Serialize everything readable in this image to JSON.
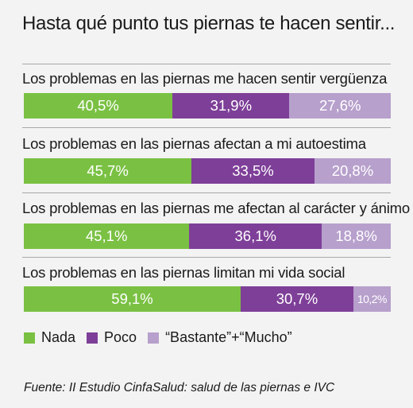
{
  "chart_data": {
    "type": "bar",
    "orientation": "horizontal",
    "stacked": true,
    "title": "Hasta qué punto tus piernas te hacen sentir...",
    "categories": [
      "Los problemas en las piernas me hacen sentir vergüenza",
      "Los problemas en las piernas afectan a mi autoestima",
      "Los problemas en las piernas me afectan al carácter y ánimo",
      "Los problemas en las piernas limitan mi vida social"
    ],
    "series": [
      {
        "name": "Nada",
        "color": "#7ac143",
        "values": [
          40.5,
          45.7,
          45.1,
          59.1
        ],
        "labels": [
          "40,5%",
          "45,7%",
          "45,1%",
          "59,1%"
        ]
      },
      {
        "name": "Poco",
        "color": "#7e3f98",
        "values": [
          31.9,
          33.5,
          36.1,
          30.7
        ],
        "labels": [
          "31,9%",
          "33,5%",
          "36,1%",
          "30,7%"
        ]
      },
      {
        "name": "“Bastante”+“Mucho”",
        "color": "#b7a0cc",
        "values": [
          27.6,
          20.8,
          18.8,
          10.2
        ],
        "labels": [
          "27,6%",
          "20,8%",
          "18,8%",
          "10,2%"
        ]
      }
    ],
    "xlim": [
      0,
      100
    ],
    "grid": false,
    "legend": "bottom-left"
  },
  "source": "Fuente: II Estudio CinfaSalud: salud de las piernas e IVC"
}
